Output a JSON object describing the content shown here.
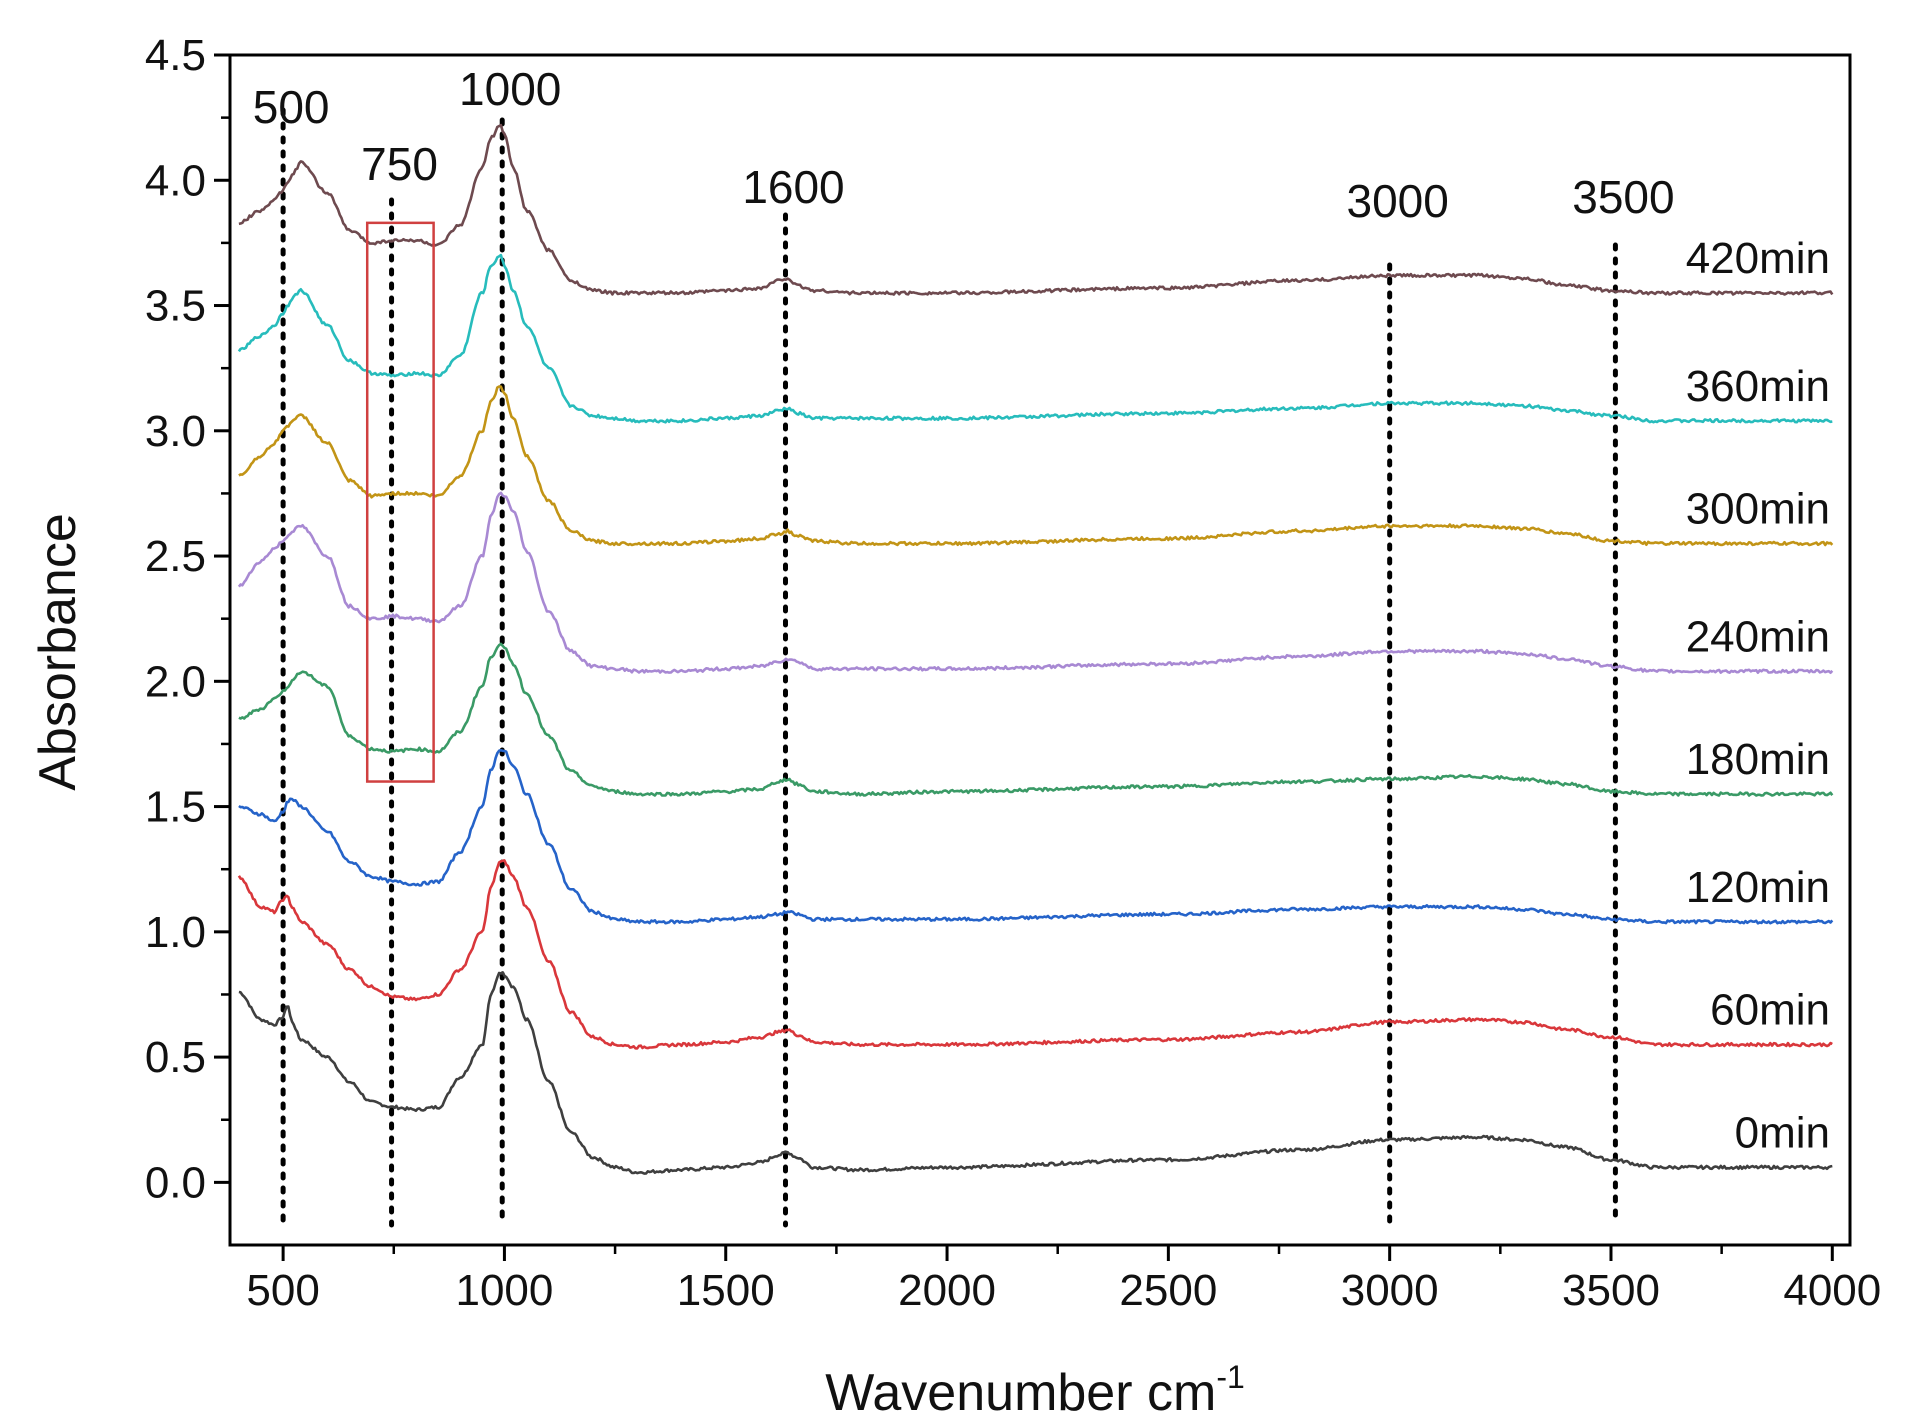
{
  "chart_data": {
    "type": "line",
    "title": "",
    "xlabel": "Wavenumber cm",
    "xlabel_superscript": "-1",
    "ylabel": "Absorbance",
    "xlim": [
      380,
      4040
    ],
    "ylim": [
      -0.25,
      4.5
    ],
    "xticks": [
      "500",
      "1000",
      "1500",
      "2000",
      "2500",
      "3000",
      "3500",
      "4000"
    ],
    "yticks": [
      "0.0",
      "0.5",
      "1.0",
      "1.5",
      "2.0",
      "2.5",
      "3.0",
      "3.5",
      "4.0",
      "4.5"
    ],
    "grid": false,
    "peak_markers": [
      {
        "label": "500",
        "x": 500
      },
      {
        "label": "750",
        "x": 745
      },
      {
        "label": "1000",
        "x": 995
      },
      {
        "label": "1600",
        "x": 1635
      },
      {
        "label": "3000",
        "x": 3000
      },
      {
        "label": "3500",
        "x": 3510
      }
    ],
    "highlight_box": {
      "x_range": [
        690,
        840
      ],
      "y_range": [
        1.6,
        3.83
      ],
      "color": "#d04040"
    },
    "shape_x": [
      400,
      450,
      480,
      500,
      510,
      520,
      540,
      600,
      650,
      700,
      750,
      800,
      850,
      900,
      950,
      970,
      990,
      1000,
      1020,
      1050,
      1100,
      1150,
      1200,
      1250,
      1300,
      1400,
      1500,
      1580,
      1620,
      1640,
      1660,
      1700,
      1800,
      2000,
      2500,
      2800,
      3000,
      3200,
      3300,
      3400,
      3500,
      3600,
      3700,
      4000
    ],
    "series": [
      {
        "name": "0min",
        "color": "#3f3f3f",
        "baseline": 0.0,
        "values": [
          0.76,
          0.65,
          0.63,
          0.66,
          0.71,
          0.64,
          0.57,
          0.5,
          0.4,
          0.32,
          0.3,
          0.29,
          0.3,
          0.42,
          0.55,
          0.75,
          0.84,
          0.83,
          0.78,
          0.65,
          0.4,
          0.2,
          0.1,
          0.06,
          0.04,
          0.05,
          0.06,
          0.08,
          0.11,
          0.12,
          0.1,
          0.06,
          0.05,
          0.06,
          0.09,
          0.13,
          0.17,
          0.18,
          0.17,
          0.14,
          0.09,
          0.06,
          0.06,
          0.06
        ]
      },
      {
        "name": "60min",
        "color": "#d9373b",
        "baseline": 0.5,
        "values": [
          1.22,
          1.1,
          1.08,
          1.13,
          1.14,
          1.1,
          1.04,
          0.95,
          0.85,
          0.78,
          0.74,
          0.73,
          0.75,
          0.85,
          1.0,
          1.18,
          1.28,
          1.28,
          1.22,
          1.1,
          0.88,
          0.68,
          0.58,
          0.55,
          0.54,
          0.55,
          0.56,
          0.58,
          0.6,
          0.61,
          0.59,
          0.56,
          0.55,
          0.55,
          0.57,
          0.6,
          0.64,
          0.65,
          0.64,
          0.61,
          0.58,
          0.55,
          0.55,
          0.55
        ]
      },
      {
        "name": "120min",
        "color": "#2563c9",
        "baseline": 1.0,
        "values": [
          1.5,
          1.47,
          1.44,
          1.48,
          1.52,
          1.53,
          1.5,
          1.4,
          1.28,
          1.22,
          1.2,
          1.19,
          1.2,
          1.32,
          1.5,
          1.65,
          1.73,
          1.72,
          1.66,
          1.55,
          1.35,
          1.17,
          1.08,
          1.05,
          1.04,
          1.04,
          1.05,
          1.06,
          1.07,
          1.08,
          1.07,
          1.05,
          1.05,
          1.05,
          1.07,
          1.09,
          1.1,
          1.1,
          1.09,
          1.07,
          1.05,
          1.04,
          1.04,
          1.04
        ]
      },
      {
        "name": "180min",
        "color": "#3a9a66",
        "baseline": 1.5,
        "values": [
          1.85,
          1.89,
          1.93,
          1.96,
          1.98,
          2.0,
          2.04,
          1.98,
          1.78,
          1.73,
          1.72,
          1.73,
          1.72,
          1.8,
          1.98,
          2.1,
          2.15,
          2.13,
          2.07,
          1.95,
          1.78,
          1.64,
          1.58,
          1.56,
          1.55,
          1.55,
          1.56,
          1.57,
          1.6,
          1.61,
          1.59,
          1.56,
          1.55,
          1.56,
          1.58,
          1.6,
          1.61,
          1.62,
          1.61,
          1.59,
          1.56,
          1.55,
          1.55,
          1.55
        ]
      },
      {
        "name": "240min",
        "color": "#a889d3",
        "baseline": 2.0,
        "values": [
          2.38,
          2.48,
          2.53,
          2.56,
          2.58,
          2.6,
          2.62,
          2.5,
          2.3,
          2.25,
          2.26,
          2.25,
          2.24,
          2.3,
          2.5,
          2.66,
          2.75,
          2.74,
          2.68,
          2.52,
          2.28,
          2.12,
          2.06,
          2.05,
          2.04,
          2.04,
          2.05,
          2.06,
          2.08,
          2.09,
          2.08,
          2.05,
          2.05,
          2.05,
          2.07,
          2.1,
          2.12,
          2.12,
          2.11,
          2.09,
          2.06,
          2.04,
          2.04,
          2.04
        ]
      },
      {
        "name": "300min",
        "color": "#c29416",
        "baseline": 2.5,
        "values": [
          2.82,
          2.9,
          2.95,
          3.0,
          3.02,
          3.04,
          3.06,
          2.95,
          2.8,
          2.74,
          2.75,
          2.75,
          2.74,
          2.82,
          3.0,
          3.12,
          3.18,
          3.15,
          3.05,
          2.9,
          2.72,
          2.6,
          2.56,
          2.55,
          2.55,
          2.55,
          2.56,
          2.57,
          2.59,
          2.6,
          2.58,
          2.56,
          2.55,
          2.55,
          2.57,
          2.6,
          2.62,
          2.62,
          2.61,
          2.59,
          2.56,
          2.55,
          2.55,
          2.55
        ]
      },
      {
        "name": "360min",
        "color": "#27bcbc",
        "baseline": 3.0,
        "values": [
          3.32,
          3.38,
          3.42,
          3.47,
          3.5,
          3.53,
          3.56,
          3.42,
          3.28,
          3.23,
          3.22,
          3.23,
          3.22,
          3.3,
          3.55,
          3.66,
          3.7,
          3.66,
          3.56,
          3.42,
          3.25,
          3.1,
          3.06,
          3.05,
          3.04,
          3.04,
          3.05,
          3.06,
          3.08,
          3.09,
          3.07,
          3.05,
          3.05,
          3.05,
          3.07,
          3.09,
          3.11,
          3.11,
          3.1,
          3.08,
          3.06,
          3.04,
          3.04,
          3.04
        ]
      },
      {
        "name": "420min",
        "color": "#6e4a4f",
        "baseline": 3.5,
        "values": [
          3.83,
          3.88,
          3.92,
          3.96,
          3.99,
          4.02,
          4.07,
          3.95,
          3.8,
          3.75,
          3.76,
          3.76,
          3.74,
          3.82,
          4.05,
          4.17,
          4.22,
          4.18,
          4.05,
          3.88,
          3.72,
          3.6,
          3.56,
          3.55,
          3.55,
          3.55,
          3.56,
          3.57,
          3.6,
          3.61,
          3.58,
          3.56,
          3.55,
          3.55,
          3.57,
          3.6,
          3.62,
          3.62,
          3.61,
          3.58,
          3.56,
          3.55,
          3.55,
          3.55
        ]
      }
    ]
  }
}
